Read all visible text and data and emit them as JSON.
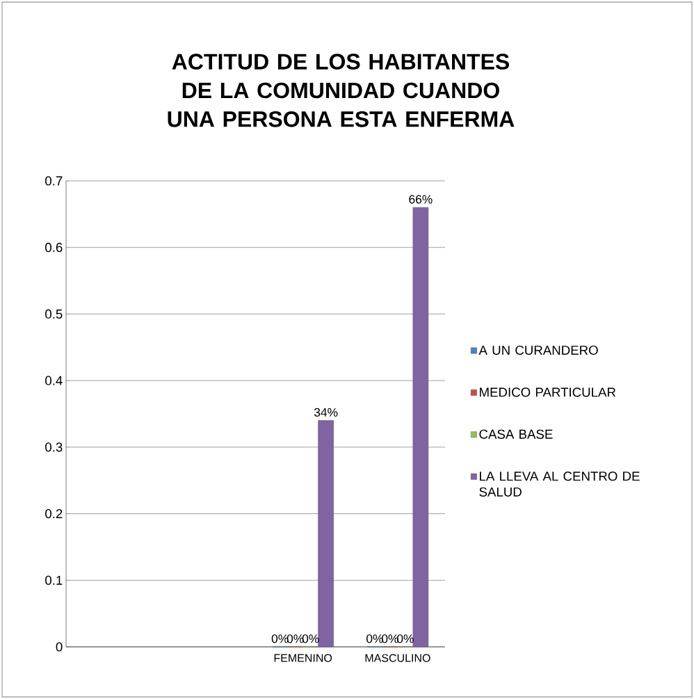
{
  "chart_data": {
    "type": "bar",
    "title": "ACTITUD DE LOS HABITANTES DE LA COMUNIDAD CUANDO UNA PERSONA ESTA ENFERMA",
    "categories": [
      null,
      null,
      "FEMENINO",
      "MASCULINO"
    ],
    "series": [
      {
        "name": "A UN CURANDERO",
        "color": "#4f81bd",
        "values": [
          null,
          null,
          0,
          0
        ],
        "value_labels": [
          null,
          null,
          "0%",
          "0%"
        ]
      },
      {
        "name": "MEDICO PARTICULAR",
        "color": "#c0504d",
        "values": [
          null,
          null,
          0,
          0
        ],
        "value_labels": [
          null,
          null,
          "0%",
          "0%"
        ]
      },
      {
        "name": "CASA BASE",
        "color": "#9bbb59",
        "values": [
          null,
          null,
          0,
          0
        ],
        "value_labels": [
          null,
          null,
          "0%",
          "0%"
        ]
      },
      {
        "name": "LA LLEVA AL CENTRO DE SALUD",
        "color": "#8064a2",
        "values": [
          null,
          null,
          0.34,
          0.66
        ],
        "value_labels": [
          null,
          null,
          "34%",
          "66%"
        ]
      }
    ],
    "ylim": [
      0,
      0.7
    ],
    "yticks": [
      0,
      0.1,
      0.2,
      0.3,
      0.4,
      0.5,
      0.6,
      0.7
    ],
    "grid": "y",
    "legend": "right"
  }
}
